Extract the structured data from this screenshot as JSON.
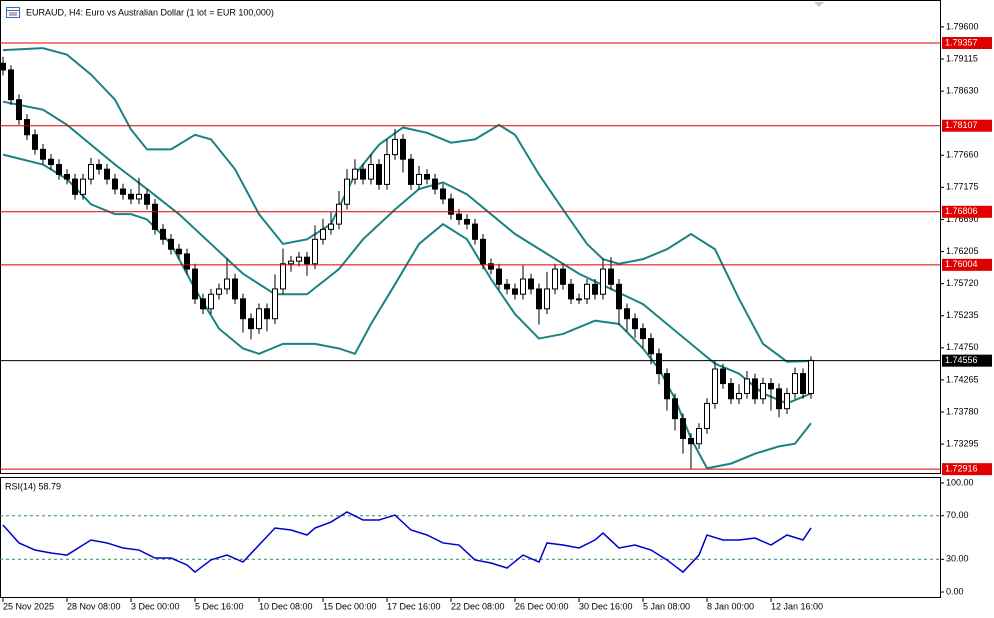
{
  "chart_data": [
    {
      "type": "candlestick",
      "title": "EURAUD, H4:  Euro vs Australian Dollar (1 lot = EUR 100,000)",
      "categories": [
        "25 Nov 2025",
        null,
        null,
        null,
        null,
        null,
        null,
        null,
        "28 Nov 08:00",
        null,
        null,
        null,
        null,
        null,
        null,
        null,
        "3 Dec 00:00",
        null,
        null,
        null,
        null,
        null,
        null,
        null,
        "5 Dec 16:00",
        null,
        null,
        null,
        null,
        null,
        null,
        null,
        "10 Dec 08:00",
        null,
        null,
        null,
        null,
        null,
        null,
        null,
        "15 Dec 00:00",
        null,
        null,
        null,
        null,
        null,
        null,
        null,
        "17 Dec 16:00",
        null,
        null,
        null,
        null,
        null,
        null,
        null,
        "22 Dec 08:00",
        null,
        null,
        null,
        null,
        null,
        null,
        null,
        "26 Dec 00:00",
        null,
        null,
        null,
        null,
        null,
        null,
        null,
        "30 Dec 16:00",
        null,
        null,
        null,
        null,
        null,
        null,
        null,
        "5 Jan 08:00",
        null,
        null,
        null,
        null,
        null,
        null,
        null,
        "8 Jan 00:00",
        null,
        null,
        null,
        null,
        null,
        null,
        null,
        "12 Jan 16:00",
        null,
        null,
        null,
        null,
        null
      ],
      "open": [
        1.7905,
        1.7895,
        1.785,
        1.782,
        1.7797,
        1.7775,
        1.776,
        1.7752,
        1.7737,
        1.773,
        1.7707,
        1.773,
        1.7752,
        1.7745,
        1.773,
        1.7715,
        1.7707,
        1.77,
        1.7707,
        1.7692,
        1.7654,
        1.7639,
        1.7624,
        1.7617,
        1.7594,
        1.7549,
        1.7534,
        1.7556,
        1.7564,
        1.7579,
        1.7549,
        1.7519,
        1.7504,
        1.7534,
        1.7519,
        1.7564,
        1.7602,
        1.7606,
        1.7612,
        1.7602,
        1.7639,
        1.7654,
        1.7662,
        1.7692,
        1.773,
        1.7745,
        1.773,
        1.7752,
        1.7722,
        1.7767,
        1.779,
        1.776,
        1.7722,
        1.7737,
        1.773,
        1.7715,
        1.77,
        1.7677,
        1.7669,
        1.7662,
        1.7639,
        1.7602,
        1.7594,
        1.7571,
        1.7564,
        1.7556,
        1.7579,
        1.7564,
        1.7534,
        1.7564,
        1.7594,
        1.7571,
        1.7549,
        1.7549,
        1.7571,
        1.7556,
        1.7594,
        1.7571,
        1.7534,
        1.7519,
        1.7504,
        1.7489,
        1.7466,
        1.7436,
        1.7398,
        1.7368,
        1.7338,
        1.733,
        1.7353,
        1.7391,
        1.7443,
        1.7421,
        1.7398,
        1.7406,
        1.7428,
        1.7398,
        1.7421,
        1.7413,
        1.7383,
        1.7406,
        1.7436,
        1.7406
      ],
      "high": [
        1.7915,
        1.7902,
        1.7858,
        1.7828,
        1.7805,
        1.7783,
        1.7768,
        1.776,
        1.7745,
        1.7738,
        1.7738,
        1.7762,
        1.776,
        1.7753,
        1.7738,
        1.7723,
        1.7715,
        1.7732,
        1.7715,
        1.77,
        1.7662,
        1.7647,
        1.7632,
        1.7625,
        1.7602,
        1.7557,
        1.7564,
        1.7572,
        1.761,
        1.7587,
        1.7557,
        1.7527,
        1.7542,
        1.7542,
        1.7586,
        1.7625,
        1.7614,
        1.762,
        1.762,
        1.766,
        1.767,
        1.768,
        1.7712,
        1.7745,
        1.776,
        1.7753,
        1.7768,
        1.776,
        1.779,
        1.7806,
        1.7798,
        1.7768,
        1.775,
        1.7745,
        1.7738,
        1.7723,
        1.7708,
        1.7685,
        1.7677,
        1.767,
        1.7647,
        1.761,
        1.7602,
        1.7579,
        1.7572,
        1.76,
        1.7587,
        1.7572,
        1.759,
        1.7602,
        1.7602,
        1.7579,
        1.7557,
        1.7579,
        1.7579,
        1.761,
        1.7612,
        1.7579,
        1.7542,
        1.7527,
        1.7512,
        1.7497,
        1.7474,
        1.7444,
        1.7406,
        1.7376,
        1.7346,
        1.7361,
        1.7399,
        1.7456,
        1.7451,
        1.7429,
        1.742,
        1.744,
        1.7436,
        1.743,
        1.7429,
        1.7421,
        1.7414,
        1.7445,
        1.7444,
        1.7462
      ],
      "low": [
        1.7887,
        1.7842,
        1.7812,
        1.7789,
        1.7767,
        1.7752,
        1.7744,
        1.7729,
        1.7722,
        1.7699,
        1.7699,
        1.7722,
        1.7737,
        1.7722,
        1.7707,
        1.7699,
        1.7692,
        1.7692,
        1.7684,
        1.7646,
        1.7631,
        1.7616,
        1.7609,
        1.7586,
        1.7541,
        1.7526,
        1.7526,
        1.7548,
        1.7556,
        1.7541,
        1.7498,
        1.7488,
        1.7496,
        1.75,
        1.7511,
        1.7556,
        1.759,
        1.7598,
        1.7584,
        1.7594,
        1.7631,
        1.7646,
        1.7654,
        1.7684,
        1.7722,
        1.7722,
        1.7722,
        1.7714,
        1.7714,
        1.7759,
        1.774,
        1.7714,
        1.7714,
        1.7722,
        1.7707,
        1.7692,
        1.7669,
        1.7661,
        1.7654,
        1.7631,
        1.7594,
        1.7586,
        1.7563,
        1.7556,
        1.7548,
        1.7548,
        1.7556,
        1.751,
        1.7526,
        1.7556,
        1.7563,
        1.7541,
        1.7541,
        1.7541,
        1.7548,
        1.7548,
        1.7563,
        1.751,
        1.75,
        1.749,
        1.7475,
        1.745,
        1.742,
        1.738,
        1.735,
        1.7315,
        1.7292,
        1.7322,
        1.7345,
        1.7383,
        1.7413,
        1.739,
        1.739,
        1.7398,
        1.739,
        1.739,
        1.738,
        1.737,
        1.7375,
        1.7398,
        1.7398,
        1.7398
      ],
      "close": [
        1.7895,
        1.785,
        1.782,
        1.7797,
        1.7775,
        1.776,
        1.7752,
        1.7737,
        1.773,
        1.7707,
        1.773,
        1.7752,
        1.7745,
        1.773,
        1.7715,
        1.7707,
        1.77,
        1.7707,
        1.7692,
        1.7654,
        1.7639,
        1.7624,
        1.7617,
        1.7594,
        1.7549,
        1.7534,
        1.7556,
        1.7564,
        1.7579,
        1.7549,
        1.7519,
        1.7504,
        1.7534,
        1.7519,
        1.7564,
        1.7602,
        1.7606,
        1.7612,
        1.7602,
        1.7639,
        1.7654,
        1.7662,
        1.7692,
        1.773,
        1.7745,
        1.773,
        1.7752,
        1.7722,
        1.7767,
        1.779,
        1.776,
        1.7722,
        1.7737,
        1.773,
        1.7715,
        1.77,
        1.7677,
        1.7669,
        1.7662,
        1.7639,
        1.7602,
        1.7594,
        1.7571,
        1.7564,
        1.7556,
        1.7579,
        1.7564,
        1.7534,
        1.7564,
        1.7594,
        1.7571,
        1.7549,
        1.7549,
        1.7571,
        1.7556,
        1.7594,
        1.7571,
        1.7534,
        1.7519,
        1.7504,
        1.7489,
        1.7466,
        1.7436,
        1.7398,
        1.7368,
        1.7338,
        1.733,
        1.7353,
        1.7391,
        1.7443,
        1.7421,
        1.7398,
        1.7406,
        1.7428,
        1.7398,
        1.7421,
        1.7413,
        1.7383,
        1.7406,
        1.7436,
        1.7406,
        1.7456
      ],
      "series": [
        {
          "color": "#1a8282",
          "x": [
            0,
            5,
            8,
            14,
            18,
            22,
            26,
            30,
            34,
            38,
            42,
            45,
            49,
            52,
            55,
            58,
            61,
            64,
            68,
            72,
            76,
            80,
            83,
            86,
            89,
            92,
            95,
            98,
            101
          ],
          "values": [
            1.7847,
            1.7835,
            1.7812,
            1.7752,
            1.7715,
            1.7677,
            1.7632,
            1.7587,
            1.7556,
            1.7556,
            1.7594,
            1.7639,
            1.7684,
            1.7715,
            1.7725,
            1.7707,
            1.7677,
            1.7647,
            1.7617,
            1.7587,
            1.7564,
            1.7541,
            1.7511,
            1.7481,
            1.7451,
            1.7436,
            1.7406,
            1.7391,
            1.7406
          ]
        },
        {
          "color": "#1a8282",
          "x": [
            0,
            5,
            8,
            11,
            14,
            16,
            18,
            21,
            24,
            26,
            29,
            32,
            35,
            38,
            41,
            44,
            47,
            50,
            53,
            56,
            59,
            62,
            64,
            67,
            70,
            73,
            75,
            77,
            80,
            83,
            86,
            89,
            92,
            95,
            98,
            101
          ],
          "values": [
            1.7925,
            1.7928,
            1.7918,
            1.7888,
            1.785,
            1.7805,
            1.7775,
            1.7775,
            1.7797,
            1.779,
            1.7745,
            1.7677,
            1.7632,
            1.7639,
            1.7662,
            1.7737,
            1.7782,
            1.7808,
            1.78,
            1.7785,
            1.779,
            1.7812,
            1.7797,
            1.7737,
            1.7684,
            1.7632,
            1.7609,
            1.7602,
            1.7609,
            1.7624,
            1.7647,
            1.7624,
            1.7549,
            1.7481,
            1.7454,
            1.7455
          ]
        },
        {
          "color": "#1a8282",
          "x": [
            0,
            5,
            8,
            11,
            14,
            16,
            18,
            21,
            24,
            27,
            30,
            32,
            35,
            39,
            42,
            44,
            46,
            49,
            52,
            55,
            58,
            61,
            64,
            67,
            70,
            74,
            77,
            80,
            82,
            84,
            86,
            88,
            91,
            94,
            97,
            99,
            101
          ],
          "values": [
            1.7767,
            1.7752,
            1.773,
            1.7692,
            1.7677,
            1.7677,
            1.7669,
            1.7632,
            1.7564,
            1.7504,
            1.7474,
            1.7466,
            1.7481,
            1.7481,
            1.7474,
            1.7466,
            1.7511,
            1.7571,
            1.7632,
            1.7662,
            1.7639,
            1.7579,
            1.7526,
            1.7489,
            1.7496,
            1.7516,
            1.7511,
            1.7474,
            1.7443,
            1.7398,
            1.7338,
            1.7293,
            1.73,
            1.7315,
            1.7326,
            1.733,
            1.7361
          ]
        }
      ],
      "ylim": [
        1.72858,
        1.80007
      ],
      "yticks": [
        {
          "value": 1.796,
          "label": "1.79600"
        },
        {
          "value": 1.79115,
          "label": "1.79115"
        },
        {
          "value": 1.7863,
          "label": "1.78630"
        },
        {
          "value": 1.7766,
          "label": "1.77660"
        },
        {
          "value": 1.77175,
          "label": "1.77175"
        },
        {
          "value": 1.7669,
          "label": "1.76690"
        },
        {
          "value": 1.76205,
          "label": "1.76205"
        },
        {
          "value": 1.7572,
          "label": "1.75720"
        },
        {
          "value": 1.75235,
          "label": "1.75235"
        },
        {
          "value": 1.7475,
          "label": "1.74750"
        },
        {
          "value": 1.74265,
          "label": "1.74265"
        },
        {
          "value": 1.7378,
          "label": "1.73780"
        },
        {
          "value": 1.73295,
          "label": "1.73295"
        }
      ],
      "levels": [
        {
          "value": 1.79357,
          "color": "#e00000"
        },
        {
          "value": 1.78107,
          "color": "#e00000"
        },
        {
          "value": 1.76806,
          "color": "#e00000"
        },
        {
          "value": 1.76004,
          "color": "#e00000"
        },
        {
          "value": 1.74556,
          "color": "#000000"
        },
        {
          "value": 1.72916,
          "color": "#e00000"
        }
      ]
    },
    {
      "type": "line",
      "title": "RSI(14) 58.79",
      "x": [
        0,
        2,
        4,
        6,
        8,
        10,
        11,
        13,
        15,
        17,
        19,
        21,
        23,
        24,
        26,
        28,
        30,
        32,
        34,
        36,
        38,
        39,
        41,
        43,
        45,
        47,
        49,
        51,
        53,
        55,
        57,
        59,
        61,
        63,
        65,
        67,
        68,
        70,
        72,
        74,
        75,
        77,
        79,
        81,
        83,
        85,
        87,
        88,
        90,
        92,
        94,
        96,
        98,
        100,
        101
      ],
      "values": [
        61.5,
        45.0,
        38.5,
        35.8,
        33.9,
        43.1,
        47.7,
        45.0,
        40.4,
        38.5,
        31.2,
        31.2,
        24.8,
        18.3,
        29.4,
        33.9,
        27.5,
        43.1,
        58.7,
        56.9,
        52.3,
        58.7,
        64.2,
        73.4,
        66.1,
        66.1,
        70.6,
        56.9,
        52.3,
        45.0,
        43.1,
        29.4,
        26.6,
        22.0,
        33.9,
        27.5,
        45.0,
        43.1,
        40.4,
        47.7,
        54.1,
        40.4,
        43.1,
        38.5,
        29.4,
        18.3,
        33.9,
        52.3,
        47.7,
        47.7,
        49.5,
        43.1,
        52.3,
        47.7,
        58.79
      ],
      "color": "#0000cd",
      "ylim": [
        -5.5,
        104.6
      ],
      "yticks": [
        {
          "value": 100,
          "label": "100.00"
        },
        {
          "value": 70,
          "label": "70.00"
        },
        {
          "value": 30,
          "label": "30.00"
        },
        {
          "value": 0,
          "label": "0.00"
        }
      ],
      "levels": [
        70,
        30
      ],
      "level_color": "#2e8b57"
    }
  ]
}
